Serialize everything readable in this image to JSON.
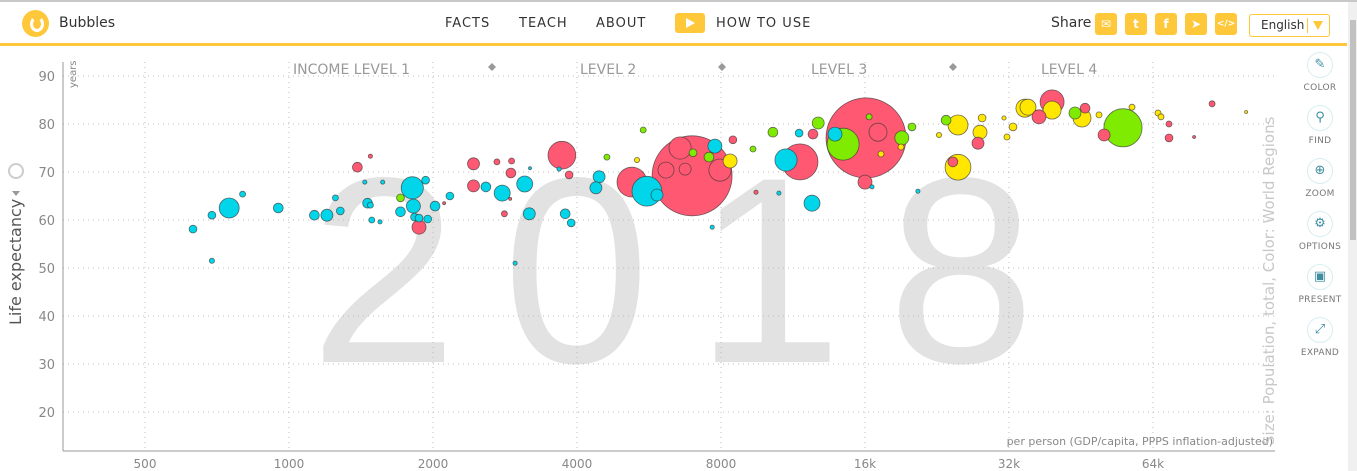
{
  "header": {
    "app_title": "Bubbles",
    "nav": [
      "FACTS",
      "TEACH",
      "ABOUT"
    ],
    "how_to_use": "HOW TO USE",
    "share_label": "Share",
    "share_icons": [
      "mail-icon",
      "twitter-icon",
      "facebook-icon",
      "telegram-icon",
      "embed-icon"
    ],
    "language": "English"
  },
  "toolbar": [
    {
      "label": "COLOR",
      "icon": "brush-icon"
    },
    {
      "label": "FIND",
      "icon": "search-icon"
    },
    {
      "label": "ZOOM",
      "icon": "zoom-in-icon"
    },
    {
      "label": "OPTIONS",
      "icon": "gear-icon"
    },
    {
      "label": "PRESENT",
      "icon": "presentation-icon"
    },
    {
      "label": "EXPAND",
      "icon": "expand-icon"
    }
  ],
  "colors": {
    "africa": "#00d5e9",
    "asia": "#ff5872",
    "americas": "#7feb00",
    "europe": "#ffe700",
    "accent": "#ffc83a"
  },
  "chart_data": {
    "type": "scatter",
    "year": "2018",
    "ylabel": "Life expectancy",
    "yunit": "years",
    "xlabel": "per person (GDP/capita, PPPS inflation-adjusted)",
    "size_label": "Size: Population, total, Color: World Regions",
    "income_levels": [
      "INCOME LEVEL 1",
      "LEVEL 2",
      "LEVEL 3",
      "LEVEL 4"
    ],
    "x_scale": "log",
    "xlim": [
      330,
      115000
    ],
    "ylim": [
      13.5,
      92
    ],
    "xticks": [
      500,
      1000,
      2000,
      4000,
      8000,
      16000,
      32000,
      64000
    ],
    "xtick_labels": [
      "500",
      "1000",
      "2000",
      "4000",
      "8000",
      "16k",
      "32k",
      "64k"
    ],
    "yticks": [
      20,
      30,
      40,
      50,
      60,
      70,
      80,
      90
    ],
    "grid": true,
    "bubble_fields": [
      "gdp_per_capita",
      "life_expectancy",
      "population_millions",
      "region"
    ],
    "bubbles": [
      [
        630,
        58.1,
        14,
        "africa"
      ],
      [
        690,
        61.0,
        14,
        "africa"
      ],
      [
        750,
        62.5,
        90,
        "africa"
      ],
      [
        690,
        51.5,
        6,
        "africa"
      ],
      [
        800,
        65.4,
        8,
        "africa"
      ],
      [
        950,
        62.5,
        22,
        "africa"
      ],
      [
        1130,
        61.0,
        22,
        "africa"
      ],
      [
        1200,
        61.0,
        32,
        "africa"
      ],
      [
        1280,
        61.9,
        14,
        "africa"
      ],
      [
        1250,
        64.6,
        8,
        "africa"
      ],
      [
        1390,
        71.0,
        22,
        "asia"
      ],
      [
        1480,
        73.3,
        4,
        "asia"
      ],
      [
        1440,
        67.9,
        4,
        "africa"
      ],
      [
        1570,
        67.9,
        4,
        "africa"
      ],
      [
        1460,
        63.5,
        22,
        "africa"
      ],
      [
        1480,
        63.1,
        8,
        "africa"
      ],
      [
        1490,
        60.0,
        8,
        "africa"
      ],
      [
        1550,
        59.6,
        4,
        "africa"
      ],
      [
        1710,
        64.6,
        14,
        "americas"
      ],
      [
        1810,
        66.7,
        110,
        "africa"
      ],
      [
        1930,
        68.3,
        14,
        "africa"
      ],
      [
        1820,
        62.9,
        44,
        "africa"
      ],
      [
        1710,
        61.7,
        22,
        "africa"
      ],
      [
        1830,
        60.6,
        14,
        "africa"
      ],
      [
        1870,
        60.4,
        14,
        "africa"
      ],
      [
        1950,
        60.2,
        14,
        "africa"
      ],
      [
        1870,
        58.5,
        44,
        "asia"
      ],
      [
        2020,
        62.9,
        22,
        "africa"
      ],
      [
        2170,
        65.0,
        14,
        "africa"
      ],
      [
        2110,
        63.5,
        2,
        "asia"
      ],
      [
        2430,
        71.7,
        32,
        "asia"
      ],
      [
        2430,
        67.1,
        32,
        "asia"
      ],
      [
        2580,
        66.9,
        22,
        "africa"
      ],
      [
        2720,
        72.1,
        8,
        "asia"
      ],
      [
        2920,
        72.3,
        8,
        "asia"
      ],
      [
        2910,
        69.8,
        22,
        "asia"
      ],
      [
        3110,
        67.5,
        58,
        "africa"
      ],
      [
        2790,
        65.6,
        58,
        "africa"
      ],
      [
        3190,
        70.8,
        2,
        "africa"
      ],
      [
        2900,
        64.4,
        2,
        "asia"
      ],
      [
        3180,
        61.3,
        32,
        "africa"
      ],
      [
        2820,
        61.3,
        8,
        "asia"
      ],
      [
        2970,
        51.0,
        4,
        "africa"
      ],
      [
        3720,
        73.5,
        175,
        "asia"
      ],
      [
        3670,
        70.6,
        4,
        "africa"
      ],
      [
        3850,
        69.4,
        14,
        "asia"
      ],
      [
        3780,
        61.3,
        22,
        "africa"
      ],
      [
        3890,
        59.4,
        14,
        "africa"
      ],
      [
        4450,
        69.0,
        32,
        "africa"
      ],
      [
        4380,
        66.7,
        32,
        "africa"
      ],
      [
        5210,
        67.9,
        200,
        "asia"
      ],
      [
        5600,
        66.0,
        200,
        "africa"
      ],
      [
        5880,
        65.2,
        32,
        "africa"
      ],
      [
        4620,
        73.1,
        8,
        "americas"
      ],
      [
        5500,
        78.75,
        8,
        "americas"
      ],
      [
        5340,
        72.5,
        6,
        "europe"
      ],
      [
        6960,
        69.2,
        1440,
        "asia"
      ],
      [
        6570,
        75.0,
        110,
        "asia"
      ],
      [
        6140,
        70.4,
        58,
        "asia"
      ],
      [
        6730,
        70.6,
        32,
        "asia"
      ],
      [
        7770,
        75.4,
        44,
        "africa"
      ],
      [
        6990,
        74.0,
        14,
        "americas"
      ],
      [
        7550,
        73.1,
        22,
        "americas"
      ],
      [
        7960,
        70.4,
        110,
        "asia"
      ],
      [
        8360,
        72.3,
        44,
        "europe"
      ],
      [
        8470,
        76.7,
        14,
        "asia"
      ],
      [
        9330,
        74.8,
        8,
        "americas"
      ],
      [
        10270,
        78.3,
        22,
        "americas"
      ],
      [
        10940,
        72.5,
        110,
        "africa"
      ],
      [
        11700,
        72.1,
        290,
        "asia"
      ],
      [
        12400,
        63.5,
        58,
        "africa"
      ],
      [
        11650,
        78.1,
        14,
        "africa"
      ],
      [
        12460,
        77.9,
        22,
        "asia"
      ],
      [
        12770,
        80.2,
        32,
        "americas"
      ],
      [
        16080,
        77.1,
        1440,
        "asia"
      ],
      [
        14400,
        75.8,
        230,
        "americas"
      ],
      [
        13850,
        77.9,
        44,
        "africa"
      ],
      [
        19100,
        77.1,
        44,
        "americas"
      ],
      [
        17030,
        78.3,
        73,
        "asia"
      ],
      [
        16000,
        67.9,
        44,
        "asia"
      ],
      [
        20060,
        79.4,
        14,
        "americas"
      ],
      [
        16320,
        81.5,
        8,
        "americas"
      ],
      [
        23640,
        80.8,
        22,
        "americas"
      ],
      [
        25030,
        79.8,
        90,
        "europe"
      ],
      [
        25030,
        71.0,
        150,
        "europe"
      ],
      [
        24430,
        72.1,
        22,
        "asia"
      ],
      [
        27830,
        78.3,
        44,
        "europe"
      ],
      [
        27560,
        76.0,
        32,
        "asia"
      ],
      [
        28110,
        81.25,
        14,
        "europe"
      ],
      [
        32620,
        79.4,
        14,
        "europe"
      ],
      [
        31690,
        77.3,
        8,
        "europe"
      ],
      [
        34550,
        83.3,
        73,
        "europe"
      ],
      [
        39370,
        84.6,
        130,
        "asia"
      ],
      [
        35070,
        83.5,
        58,
        "europe"
      ],
      [
        36970,
        81.5,
        44,
        "asia"
      ],
      [
        39370,
        82.9,
        73,
        "europe"
      ],
      [
        43960,
        82.3,
        32,
        "americas"
      ],
      [
        45480,
        81.25,
        73,
        "europe"
      ],
      [
        46150,
        83.3,
        22,
        "asia"
      ],
      [
        49360,
        81.9,
        8,
        "europe"
      ],
      [
        55400,
        79.2,
        330,
        "americas"
      ],
      [
        50570,
        77.7,
        32,
        "asia"
      ],
      [
        57840,
        83.5,
        8,
        "europe"
      ],
      [
        65570,
        82.3,
        8,
        "europe"
      ],
      [
        69130,
        80.0,
        8,
        "asia"
      ],
      [
        69130,
        77.1,
        14,
        "asia"
      ],
      [
        85050,
        84.2,
        8,
        "asia"
      ],
      [
        100200,
        82.5,
        2,
        "europe"
      ],
      [
        78000,
        77.3,
        2,
        "asia"
      ],
      [
        22850,
        77.7,
        6,
        "europe"
      ],
      [
        17280,
        73.75,
        8,
        "europe"
      ],
      [
        19030,
        75.2,
        8,
        "europe"
      ],
      [
        20640,
        66.0,
        4,
        "africa"
      ],
      [
        16550,
        66.9,
        4,
        "africa"
      ],
      [
        9470,
        65.8,
        4,
        "asia"
      ],
      [
        10570,
        65.6,
        4,
        "africa"
      ],
      [
        7670,
        58.5,
        4,
        "africa"
      ],
      [
        66520,
        81.5,
        8,
        "europe"
      ],
      [
        31240,
        81.25,
        4,
        "europe"
      ]
    ]
  }
}
